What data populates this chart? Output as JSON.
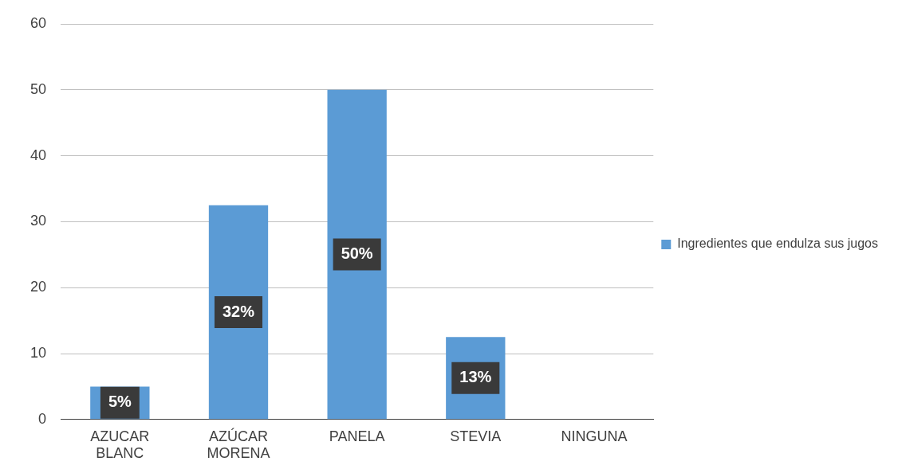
{
  "chart_data": {
    "type": "bar",
    "categories": [
      "AZUCAR BLANC",
      "AZÚCAR MORENA",
      "PANELA",
      "STEVIA",
      "NINGUNA"
    ],
    "series": [
      {
        "name": "Ingredientes que endulza sus jugos",
        "color": "#5b9bd5",
        "values": [
          5,
          32.5,
          50,
          12.5,
          0
        ],
        "value_labels": [
          "5%",
          "32%",
          "50%",
          "13%",
          null
        ]
      }
    ],
    "ylim": [
      0,
      60
    ],
    "yticks": [
      0,
      10,
      20,
      30,
      40,
      50,
      60
    ],
    "grid": "y",
    "legend": "right"
  }
}
